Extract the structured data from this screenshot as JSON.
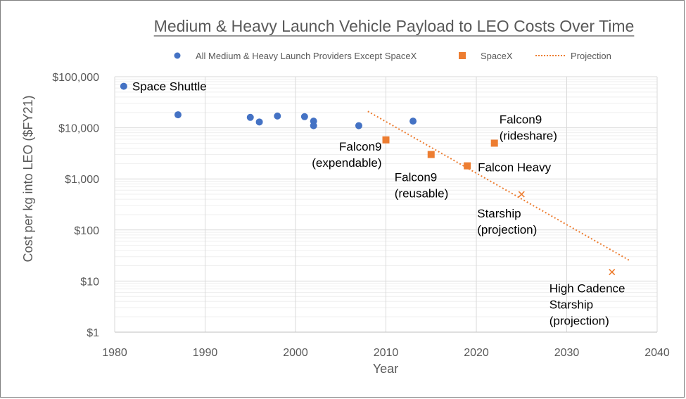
{
  "chart_data": {
    "type": "scatter",
    "title": "Medium & Heavy Launch Vehicle Payload to LEO Costs Over Time",
    "xlabel": "Year",
    "ylabel": "Cost per kg into LEO ($FY21)",
    "xlim": [
      1980,
      2040
    ],
    "ylim": [
      1,
      100000
    ],
    "yscale": "log",
    "x_ticks": [
      "1980",
      "1990",
      "2000",
      "2010",
      "2020",
      "2030",
      "2040"
    ],
    "y_ticks": [
      "$1",
      "$10",
      "$100",
      "$1,000",
      "$10,000",
      "$100,000"
    ],
    "grid": true,
    "legend_position": "top",
    "legend": [
      {
        "name": "All Medium & Heavy Launch Providers Except SpaceX",
        "marker": "circle",
        "color": "#4472c4"
      },
      {
        "name": "SpaceX",
        "marker": "square",
        "color": "#ed7d31"
      },
      {
        "name": "Projection",
        "marker": "dotted-line",
        "color": "#ed7d31"
      }
    ],
    "series": [
      {
        "name": "All Medium & Heavy Launch Providers Except SpaceX",
        "color": "#4472c4",
        "marker": "circle",
        "points": [
          {
            "x": 1981,
            "y": 65000
          },
          {
            "x": 1987,
            "y": 18000
          },
          {
            "x": 1995,
            "y": 16000
          },
          {
            "x": 1996,
            "y": 13000
          },
          {
            "x": 1998,
            "y": 17000
          },
          {
            "x": 2001,
            "y": 16500
          },
          {
            "x": 2002,
            "y": 13500
          },
          {
            "x": 2002,
            "y": 11000
          },
          {
            "x": 2007,
            "y": 11000
          },
          {
            "x": 2013,
            "y": 13500
          }
        ]
      },
      {
        "name": "SpaceX",
        "color": "#ed7d31",
        "marker": "square",
        "points": [
          {
            "x": 2010,
            "y": 5800
          },
          {
            "x": 2015,
            "y": 3000
          },
          {
            "x": 2019,
            "y": 1800
          },
          {
            "x": 2022,
            "y": 5000
          }
        ]
      },
      {
        "name": "Projection",
        "color": "#ed7d31",
        "marker": "x",
        "points": [
          {
            "x": 2025,
            "y": 500
          },
          {
            "x": 2035,
            "y": 15
          }
        ]
      },
      {
        "name": "Projection",
        "color": "#ed7d31",
        "line": "dotted",
        "points": [
          {
            "x": 2008,
            "y": 21000
          },
          {
            "x": 2037,
            "y": 25
          }
        ]
      }
    ],
    "annotations": [
      {
        "id": "space-shuttle",
        "lines": [
          "Space Shuttle"
        ],
        "x": 1981,
        "y": 65000
      },
      {
        "id": "falcon9-expendable",
        "lines": [
          "Falcon9",
          "(expendable)"
        ],
        "x": 2010,
        "y": 5800
      },
      {
        "id": "falcon9-reusable",
        "lines": [
          "Falcon9",
          "(reusable)"
        ],
        "x": 2015,
        "y": 3000
      },
      {
        "id": "falcon-heavy",
        "lines": [
          "Falcon Heavy"
        ],
        "x": 2019,
        "y": 1800
      },
      {
        "id": "falcon9-rideshare",
        "lines": [
          "Falcon9",
          "(rideshare)"
        ],
        "x": 2022,
        "y": 5000
      },
      {
        "id": "starship-projection",
        "lines": [
          "Starship",
          "(projection)"
        ],
        "x": 2025,
        "y": 500
      },
      {
        "id": "high-cadence-starship",
        "lines": [
          "High Cadence",
          "Starship",
          "(projection)"
        ],
        "x": 2035,
        "y": 15
      }
    ]
  }
}
